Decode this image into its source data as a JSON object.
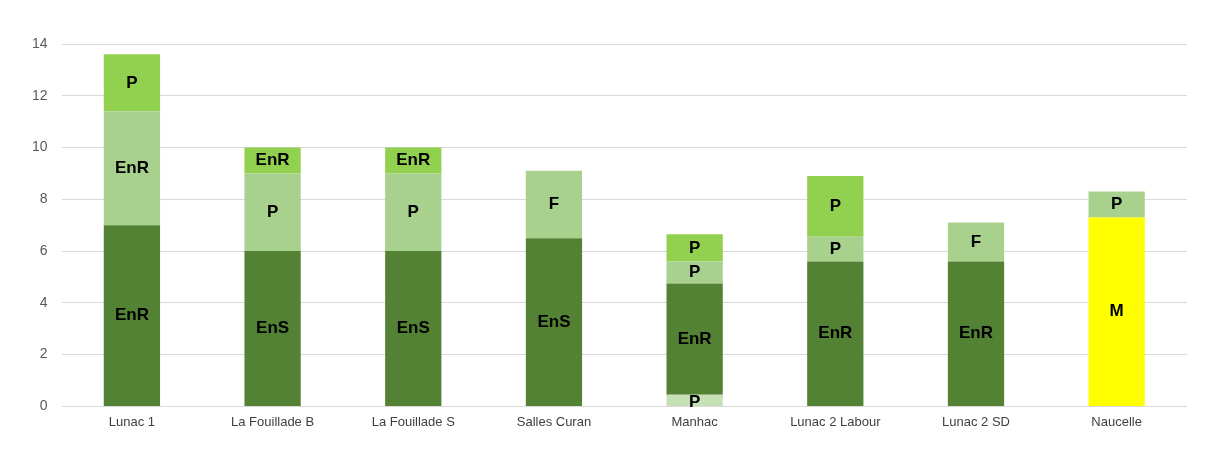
{
  "chart_data": {
    "type": "bar",
    "stacked": true,
    "categories": [
      "Lunac 1",
      "La Fouillade B",
      "La Fouillade S",
      "Salles Curan",
      "Manhac",
      "Lunac 2 Labour",
      "Lunac 2 SD",
      "Naucelle"
    ],
    "series": [
      {
        "colors": [
          "#548235",
          "#548235",
          "#548235",
          "#548235",
          "#c5e0b4",
          "#548235",
          "#548235",
          "#ffff00"
        ],
        "values": [
          7,
          6,
          6,
          6.5,
          0.45,
          5.6,
          5.6,
          7.3
        ],
        "value_labels": [
          "EnR",
          "EnS",
          "EnS",
          "EnS",
          "P",
          "EnR",
          "EnR",
          "M"
        ]
      },
      {
        "colors": [
          "#a9d18e",
          "#a9d18e",
          "#a9d18e",
          "#a9d18e",
          "#548235",
          "#a9d18e",
          "#a9d18e",
          "#a9d18e"
        ],
        "values": [
          4.4,
          3,
          3,
          2.6,
          4.3,
          0.95,
          1.5,
          1
        ],
        "value_labels": [
          "EnR",
          "P",
          "P",
          "F",
          "EnR",
          "P",
          "F",
          "P"
        ]
      },
      {
        "colors": [
          "#92d050",
          "#92d050",
          "#92d050",
          null,
          "#a9d18e",
          "#92d050",
          null,
          null
        ],
        "values": [
          2.2,
          1,
          1,
          null,
          0.85,
          2.35,
          null,
          null
        ],
        "value_labels": [
          "P",
          "EnR",
          "EnR",
          null,
          "P",
          "P",
          null,
          null
        ]
      },
      {
        "colors": [
          null,
          null,
          null,
          null,
          "#92d050",
          null,
          null,
          null
        ],
        "values": [
          null,
          null,
          null,
          null,
          1.05,
          null,
          null,
          null
        ],
        "value_labels": [
          null,
          null,
          null,
          null,
          "P",
          null,
          null,
          null
        ]
      }
    ],
    "ylim": [
      0,
      14
    ],
    "yticks": [
      0,
      2,
      4,
      6,
      8,
      10,
      12,
      14
    ],
    "grid": "y",
    "legend": false
  }
}
